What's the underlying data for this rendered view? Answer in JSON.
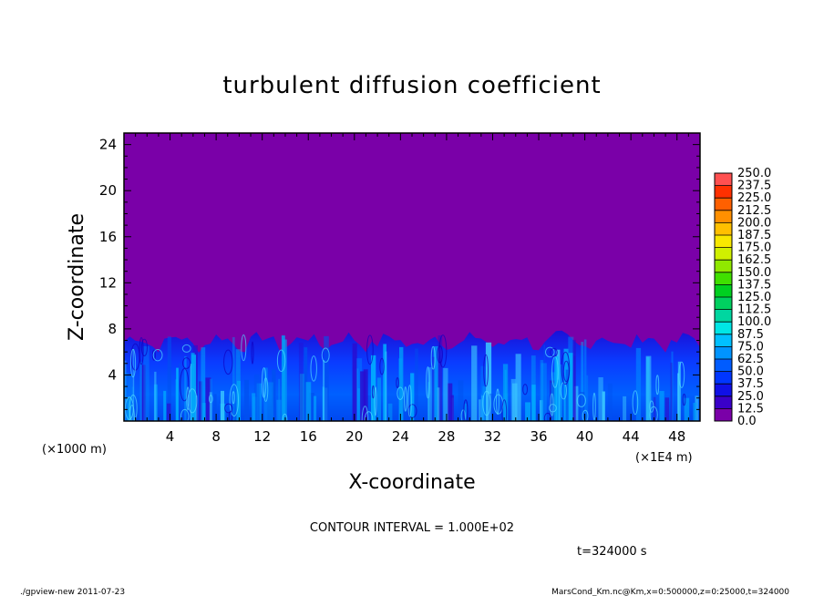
{
  "chart_data": {
    "type": "heatmap",
    "title": "turbulent diffusion coefficient",
    "xlabel": "X-coordinate",
    "ylabel": "Z-coordinate",
    "x_multiplier_label": "(×1E4 m)",
    "y_multiplier_label": "(×1000 m)",
    "xlim": [
      0,
      50
    ],
    "ylim": [
      0,
      25
    ],
    "x_ticks": [
      "4",
      "8",
      "12",
      "16",
      "20",
      "24",
      "28",
      "32",
      "36",
      "40",
      "44",
      "48"
    ],
    "y_ticks": [
      "4",
      "8",
      "12",
      "16",
      "20",
      "24"
    ],
    "colorbar": {
      "levels": [
        "0.0",
        "12.5",
        "25.0",
        "37.5",
        "50.0",
        "62.5",
        "75.0",
        "87.5",
        "100.0",
        "112.5",
        "125.0",
        "137.5",
        "150.0",
        "162.5",
        "175.0",
        "187.5",
        "200.0",
        "212.5",
        "225.0",
        "237.5",
        "250.0"
      ],
      "colors": [
        "#7a00a8",
        "#3a00c8",
        "#1010e6",
        "#0036ff",
        "#005cff",
        "#0094ff",
        "#00c0ff",
        "#00e6e6",
        "#00d6a0",
        "#00d060",
        "#00d020",
        "#40e000",
        "#90e800",
        "#d0f000",
        "#f8e800",
        "#ffc000",
        "#ff9000",
        "#ff6000",
        "#ff3000",
        "#ff5050",
        "#ff9090"
      ]
    },
    "background_color": "#7a00a8",
    "field_summary": "Turbulent diffusion coefficient is near 0 above about Z=7-8 (×1000 m) and ranges roughly 12.5-75 in the turbulent layer below it across all X.",
    "boundary_layer_top_approx": 7.5
  },
  "contour_interval": "CONTOUR INTERVAL = 1.000E+02",
  "time_label": "t=324000  s",
  "footer": {
    "left": "./gpview-new   2011-07-23",
    "right": "MarsCond_Km.nc@Km,x=0:500000,z=0:25000,t=324000"
  }
}
